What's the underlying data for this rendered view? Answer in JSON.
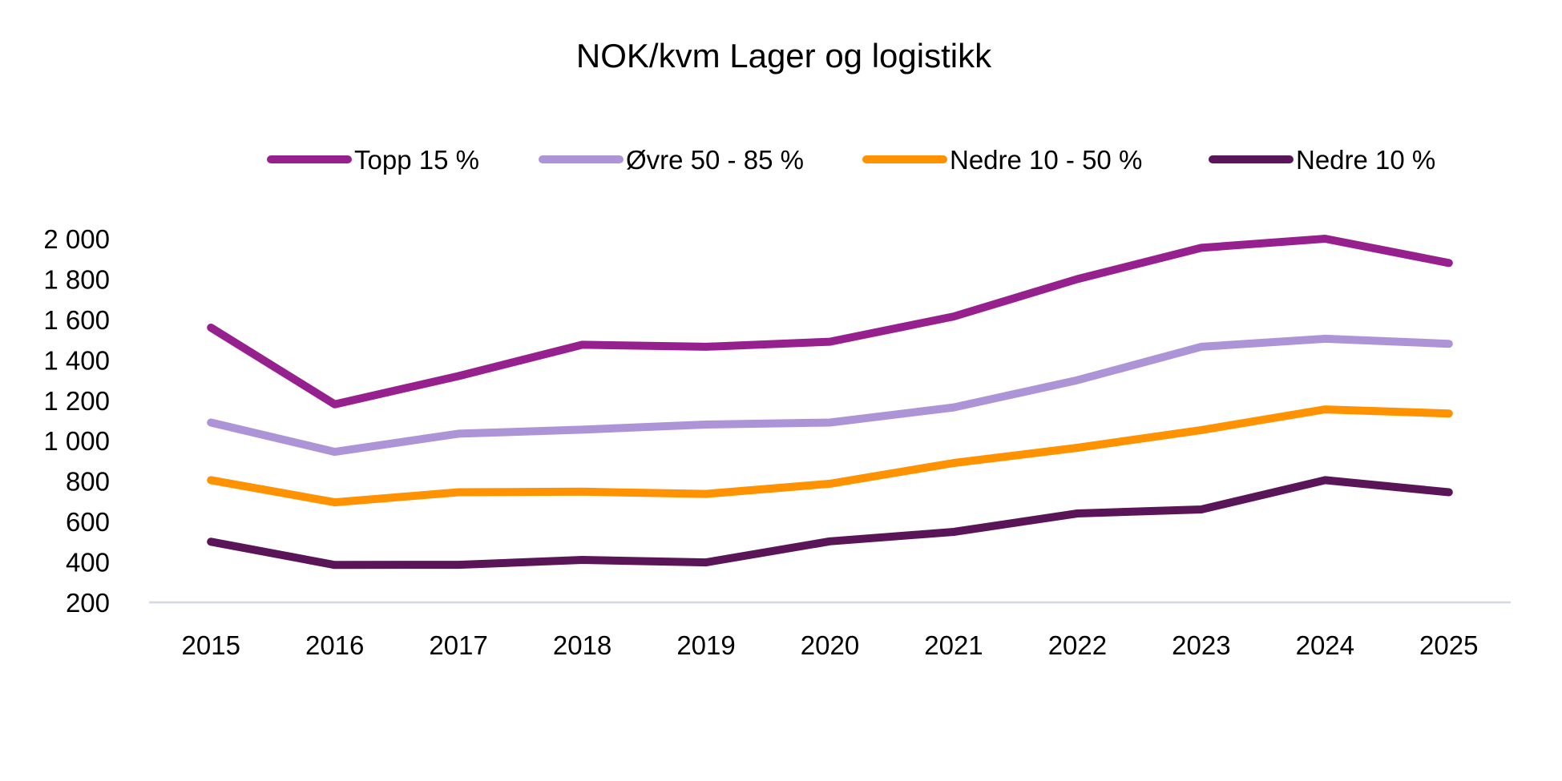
{
  "chart_data": {
    "type": "line",
    "title": "NOK/kvm Lager og logistikk",
    "xlabel": "",
    "ylabel": "",
    "categories": [
      "2015",
      "2016",
      "2017",
      "2018",
      "2019",
      "2020",
      "2021",
      "2022",
      "2023",
      "2024",
      "2025"
    ],
    "ylim": [
      200,
      2000
    ],
    "yticks": [
      200,
      400,
      600,
      800,
      1000,
      1200,
      1400,
      1600,
      1800,
      2000
    ],
    "ytick_labels": [
      "200",
      "400",
      "600",
      "800",
      "1 000",
      "1 200",
      "1 400",
      "1 600",
      "1 800",
      "2 000"
    ],
    "grid": false,
    "legend_position": "top",
    "series": [
      {
        "name": "Topp 15 %",
        "color": "#97208F",
        "values": [
          1560,
          1180,
          1320,
          1475,
          1465,
          1490,
          1615,
          1800,
          1955,
          2000,
          1880
        ]
      },
      {
        "name": "Øvre 50 - 85 %",
        "color": "#AD94D7",
        "values": [
          1090,
          945,
          1035,
          1055,
          1080,
          1090,
          1165,
          1300,
          1465,
          1505,
          1480
        ]
      },
      {
        "name": "Nedre 10 - 50 %",
        "color": "#FF9200",
        "values": [
          805,
          695,
          745,
          748,
          737,
          787,
          890,
          965,
          1053,
          1155,
          1135
        ]
      },
      {
        "name": "Nedre 10 %",
        "color": "#5A1558",
        "values": [
          500,
          385,
          386,
          410,
          398,
          502,
          549,
          640,
          660,
          805,
          745
        ]
      }
    ],
    "axis_color": "#D5D8E5"
  }
}
